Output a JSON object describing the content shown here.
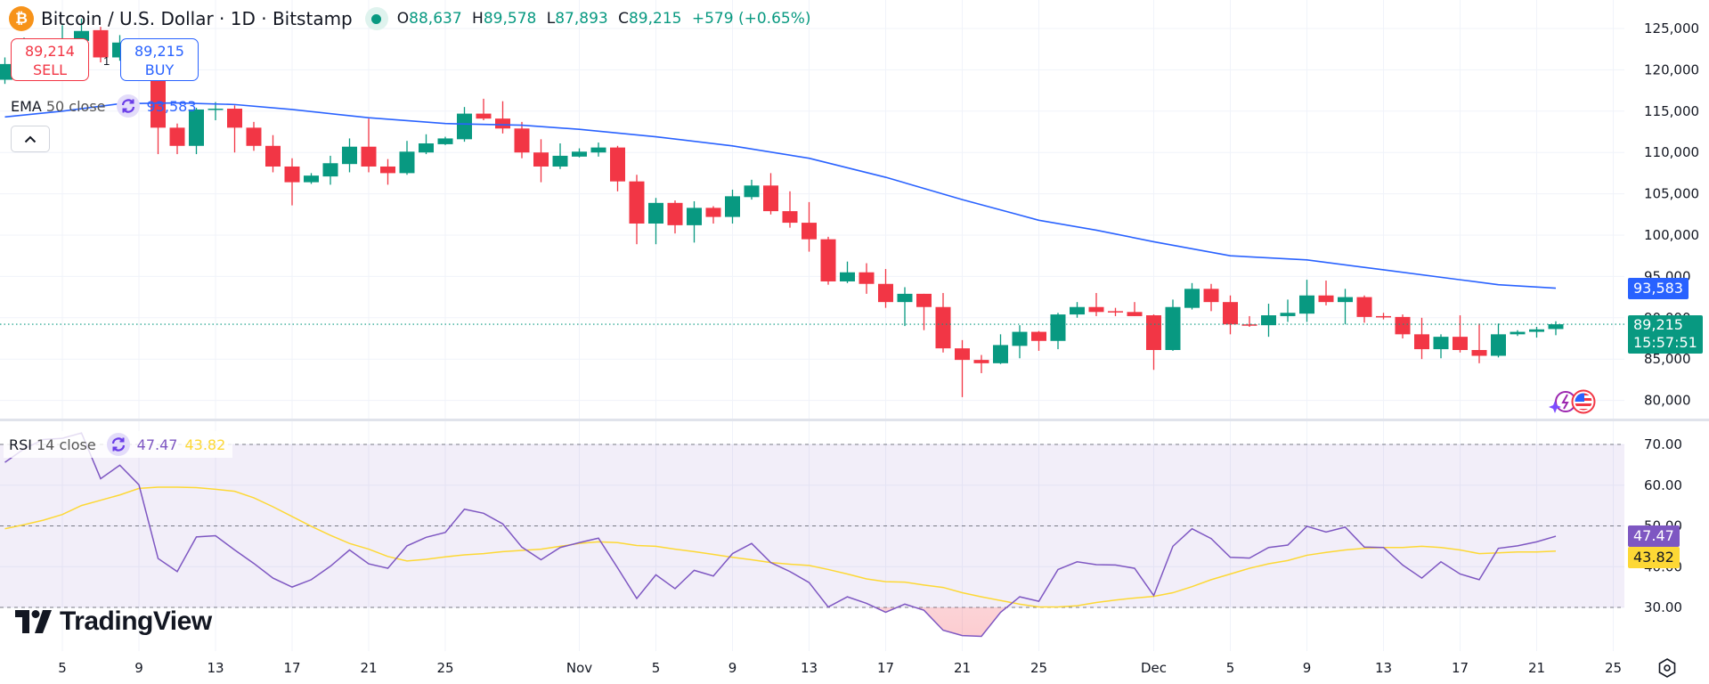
{
  "header": {
    "symbol_icon": "bitcoin-icon",
    "title": "Bitcoin / U.S. Dollar · 1D · Bitstamp",
    "market_status_icon": "market-open-dot-icon",
    "ohlc": {
      "o_label": "O",
      "o": "88,637",
      "h_label": "H",
      "h": "89,578",
      "l_label": "L",
      "l": "87,893",
      "c_label": "C",
      "c": "89,215",
      "change": "+579 (+0.65%)"
    }
  },
  "trade": {
    "sell_price": "89,214",
    "sell_label": "SELL",
    "buy_price": "89,215",
    "buy_label": "BUY",
    "quantity": "1"
  },
  "indicators": {
    "ema": {
      "name": "EMA",
      "params": "50 close",
      "value": "93,583",
      "color": "#2962ff"
    },
    "rsi": {
      "name": "RSI",
      "params": "14 close",
      "value": "47.47",
      "ma_value": "43.82",
      "color": "#7e57c2",
      "ma_color": "#fdd835"
    }
  },
  "price_badges": {
    "ema": "93,583",
    "last": "89,215",
    "countdown": "15:57:51"
  },
  "rsi_badges": {
    "rsi": "47.47",
    "ma": "43.82"
  },
  "logo": "TradingView",
  "colors": {
    "up": "#089981",
    "down": "#f23645",
    "ema": "#2962ff",
    "rsi": "#7e57c2",
    "rsi_ma": "#fdd835",
    "grid": "#f0f3fa"
  },
  "chart_data": {
    "type": "candlestick",
    "price_axis": {
      "ticks": [
        "125,000",
        "120,000",
        "115,000",
        "110,000",
        "105,000",
        "100,000",
        "95,000",
        "90,000",
        "85,000",
        "80,000"
      ],
      "range": [
        78000,
        127000
      ]
    },
    "rsi_axis": {
      "ticks": [
        "70.00",
        "60.00",
        "50.00",
        "40.00",
        "30.00"
      ],
      "range": [
        20,
        75
      ],
      "bands": [
        70,
        50,
        30
      ]
    },
    "x_axis": {
      "ticks": [
        [
          "Oct 5",
          "5"
        ],
        [
          "Oct 9",
          "9"
        ],
        [
          "Oct 13",
          "13"
        ],
        [
          "Oct 17",
          "17"
        ],
        [
          "Oct 21",
          "21"
        ],
        [
          "Oct 25",
          "25"
        ],
        [
          "Nov 1",
          "Nov"
        ],
        [
          "Nov 5",
          "5"
        ],
        [
          "Nov 9",
          "9"
        ],
        [
          "Nov 13",
          "13"
        ],
        [
          "Nov 17",
          "17"
        ],
        [
          "Nov 21",
          "21"
        ],
        [
          "Nov 25",
          "25"
        ],
        [
          "Dec 1",
          "Dec"
        ],
        [
          "Dec 5",
          "5"
        ],
        [
          "Dec 9",
          "9"
        ],
        [
          "Dec 13",
          "13"
        ],
        [
          "Dec 17",
          "17"
        ],
        [
          "Dec 21",
          "21"
        ],
        [
          "Dec 25",
          "25"
        ]
      ]
    },
    "last_price": 89215,
    "candles_columns": [
      "date",
      "open",
      "high",
      "low",
      "close"
    ],
    "candles": [
      [
        "Oct 2",
        118800,
        121500,
        118300,
        120700
      ],
      [
        "Oct 3",
        120700,
        123900,
        119500,
        122300
      ],
      [
        "Oct 4",
        122300,
        122900,
        121500,
        122400
      ],
      [
        "Oct 5",
        122400,
        125400,
        122000,
        123500
      ],
      [
        "Oct 6",
        123500,
        126200,
        123000,
        124700
      ],
      [
        "Oct 7",
        124800,
        125200,
        120900,
        121500
      ],
      [
        "Oct 8",
        121500,
        124200,
        121100,
        123300
      ],
      [
        "Oct 9",
        123300,
        123800,
        119800,
        121700
      ],
      [
        "Oct 10",
        121700,
        122500,
        109800,
        113000
      ],
      [
        "Oct 11",
        113000,
        113500,
        109800,
        110800
      ],
      [
        "Oct 12",
        110800,
        115400,
        109800,
        115200
      ],
      [
        "Oct 13",
        115200,
        116100,
        113900,
        115300
      ],
      [
        "Oct 14",
        115300,
        115700,
        110000,
        113000
      ],
      [
        "Oct 15",
        113000,
        113700,
        110200,
        110800
      ],
      [
        "Oct 16",
        110800,
        112100,
        107600,
        108300
      ],
      [
        "Oct 17",
        108300,
        109300,
        103600,
        106400
      ],
      [
        "Oct 18",
        106400,
        107500,
        106200,
        107200
      ],
      [
        "Oct 19",
        107100,
        109600,
        106100,
        108700
      ],
      [
        "Oct 20",
        108600,
        111700,
        107600,
        110700
      ],
      [
        "Oct 21",
        110700,
        114100,
        107600,
        108300
      ],
      [
        "Oct 22",
        108300,
        109200,
        106100,
        107500
      ],
      [
        "Oct 23",
        107500,
        111400,
        107300,
        110100
      ],
      [
        "Oct 24",
        110000,
        112200,
        109800,
        111100
      ],
      [
        "Oct 25",
        111000,
        111900,
        110900,
        111700
      ],
      [
        "Oct 26",
        111600,
        115500,
        111300,
        114700
      ],
      [
        "Oct 27",
        114700,
        116500,
        113900,
        114100
      ],
      [
        "Oct 28",
        114100,
        116200,
        112300,
        112900
      ],
      [
        "Oct 29",
        112900,
        113700,
        109300,
        110000
      ],
      [
        "Oct 30",
        110000,
        111600,
        106400,
        108300
      ],
      [
        "Oct 31",
        108300,
        111100,
        108000,
        109600
      ],
      [
        "Nov 1",
        109500,
        110500,
        109400,
        110100
      ],
      [
        "Nov 2",
        110000,
        111200,
        109500,
        110600
      ],
      [
        "Nov 3",
        110600,
        110800,
        105300,
        106500
      ],
      [
        "Nov 4",
        106500,
        107300,
        98900,
        101400
      ],
      [
        "Nov 5",
        101400,
        104500,
        98900,
        103900
      ],
      [
        "Nov 6",
        103900,
        104200,
        100200,
        101200
      ],
      [
        "Nov 7",
        101200,
        104100,
        99100,
        103300
      ],
      [
        "Nov 8",
        103300,
        103500,
        101400,
        102200
      ],
      [
        "Nov 9",
        102200,
        105500,
        101400,
        104700
      ],
      [
        "Nov 10",
        104600,
        106700,
        104300,
        106000
      ],
      [
        "Nov 11",
        106000,
        107500,
        102500,
        102900
      ],
      [
        "Nov 12",
        102900,
        105300,
        100900,
        101500
      ],
      [
        "Nov 13",
        101500,
        104000,
        98000,
        99500
      ],
      [
        "Nov 14",
        99500,
        99800,
        94000,
        94400
      ],
      [
        "Nov 15",
        94400,
        96800,
        94200,
        95500
      ],
      [
        "Nov 16",
        95500,
        96600,
        92900,
        94100
      ],
      [
        "Nov 17",
        94100,
        95900,
        91200,
        91900
      ],
      [
        "Nov 18",
        91900,
        93700,
        89000,
        92900
      ],
      [
        "Nov 19",
        92900,
        92900,
        88500,
        91300
      ],
      [
        "Nov 20",
        91300,
        93000,
        85800,
        86300
      ],
      [
        "Nov 21",
        86300,
        87300,
        80400,
        84900
      ],
      [
        "Nov 22",
        84900,
        85500,
        83300,
        84500
      ],
      [
        "Nov 23",
        84500,
        88000,
        84400,
        86700
      ],
      [
        "Nov 24",
        86600,
        89100,
        85100,
        88300
      ],
      [
        "Nov 25",
        88300,
        88400,
        86000,
        87200
      ],
      [
        "Nov 26",
        87200,
        90600,
        86200,
        90400
      ],
      [
        "Nov 27",
        90400,
        91900,
        90000,
        91300
      ],
      [
        "Nov 28",
        91300,
        93000,
        90200,
        90700
      ],
      [
        "Nov 29",
        90800,
        91200,
        90200,
        90700
      ],
      [
        "Nov 30",
        90700,
        91900,
        90200,
        90200
      ],
      [
        "Dec 1",
        90300,
        90400,
        83700,
        86100
      ],
      [
        "Dec 2",
        86100,
        92200,
        86000,
        91300
      ],
      [
        "Dec 3",
        91200,
        94200,
        91000,
        93500
      ],
      [
        "Dec 4",
        93500,
        94100,
        90800,
        91900
      ],
      [
        "Dec 5",
        91900,
        92700,
        88000,
        89200
      ],
      [
        "Dec 6",
        89200,
        90200,
        88900,
        89100
      ],
      [
        "Dec 7",
        89100,
        91700,
        87700,
        90300
      ],
      [
        "Dec 8",
        90200,
        92200,
        89500,
        90600
      ],
      [
        "Dec 9",
        90500,
        94600,
        89500,
        92700
      ],
      [
        "Dec 10",
        92700,
        94500,
        91500,
        91900
      ],
      [
        "Dec 11",
        91900,
        93500,
        89200,
        92500
      ],
      [
        "Dec 12",
        92500,
        92700,
        89400,
        90100
      ],
      [
        "Dec 13",
        90200,
        90600,
        89800,
        90100
      ],
      [
        "Dec 14",
        90100,
        90400,
        87500,
        88000
      ],
      [
        "Dec 15",
        88000,
        90000,
        85000,
        86200
      ],
      [
        "Dec 16",
        86200,
        88000,
        85100,
        87700
      ],
      [
        "Dec 17",
        87700,
        90300,
        85800,
        86100
      ],
      [
        "Dec 18",
        86100,
        89300,
        84500,
        85400
      ],
      [
        "Dec 19",
        85400,
        89300,
        85200,
        88000
      ],
      [
        "Dec 20",
        88000,
        88500,
        87800,
        88300
      ],
      [
        "Dec 21",
        88300,
        88900,
        87600,
        88600
      ],
      [
        "Dec 22",
        88637,
        89578,
        87893,
        89215
      ]
    ],
    "ema50": [
      [
        "Oct 2",
        114300
      ],
      [
        "Oct 5",
        115000
      ],
      [
        "Oct 8",
        115900
      ],
      [
        "Oct 11",
        116000
      ],
      [
        "Oct 14",
        115800
      ],
      [
        "Oct 17",
        115200
      ],
      [
        "Oct 21",
        114200
      ],
      [
        "Oct 25",
        113500
      ],
      [
        "Oct 29",
        113300
      ],
      [
        "Nov 1",
        112800
      ],
      [
        "Nov 5",
        111900
      ],
      [
        "Nov 9",
        110800
      ],
      [
        "Nov 13",
        109300
      ],
      [
        "Nov 17",
        107000
      ],
      [
        "Nov 21",
        104300
      ],
      [
        "Nov 25",
        101800
      ],
      [
        "Nov 28",
        100600
      ],
      [
        "Dec 1",
        99200
      ],
      [
        "Dec 5",
        97500
      ],
      [
        "Dec 9",
        97000
      ],
      [
        "Dec 13",
        95800
      ],
      [
        "Dec 17",
        94600
      ],
      [
        "Dec 19",
        94000
      ],
      [
        "Dec 22",
        93583
      ]
    ],
    "rsi14": [
      65.6,
      68.9,
      71.2,
      71.5,
      72.8,
      61.6,
      64.9,
      60.1,
      42.0,
      38.8,
      47.3,
      47.6,
      44.1,
      40.8,
      37.2,
      35.0,
      36.8,
      40.1,
      44.1,
      40.7,
      39.6,
      45.1,
      47.2,
      48.4,
      54.1,
      53.1,
      50.5,
      44.8,
      41.7,
      44.7,
      45.9,
      47.0,
      39.7,
      32.2,
      38.0,
      34.6,
      39.1,
      37.7,
      43.2,
      45.7,
      41.0,
      38.8,
      36.1,
      30.1,
      32.6,
      31.0,
      28.8,
      30.8,
      29.3,
      24.4,
      23.1,
      22.9,
      28.8,
      32.6,
      31.5,
      39.3,
      41.2,
      40.5,
      40.4,
      39.6,
      32.9,
      45.0,
      49.3,
      46.9,
      42.3,
      42.1,
      44.7,
      45.3,
      49.9,
      48.5,
      49.7,
      44.8,
      44.7,
      40.4,
      37.2,
      41.2,
      38.2,
      36.8,
      44.5,
      45.1,
      46.1,
      47.47
    ],
    "rsi_ma": [
      49.3,
      50.3,
      51.4,
      52.8,
      55.0,
      56.3,
      57.6,
      59.2,
      59.5,
      59.5,
      59.4,
      59.0,
      58.5,
      56.9,
      54.7,
      52.3,
      49.9,
      47.7,
      45.7,
      44.3,
      42.5,
      41.4,
      41.8,
      42.4,
      42.9,
      43.2,
      43.7,
      44.0,
      44.3,
      45.0,
      45.7,
      46.1,
      45.9,
      45.2,
      45.0,
      44.3,
      43.7,
      43.0,
      42.3,
      41.7,
      41.0,
      40.6,
      40.3,
      39.3,
      38.2,
      37.0,
      36.3,
      36.2,
      35.5,
      34.9,
      33.6,
      32.6,
      31.7,
      30.8,
      30.1,
      30.1,
      30.4,
      31.2,
      31.8,
      32.3,
      32.7,
      33.6,
      35.1,
      36.8,
      38.2,
      39.6,
      40.7,
      41.5,
      42.8,
      43.5,
      44.1,
      44.5,
      44.7,
      44.7,
      45.0,
      44.7,
      44.1,
      43.2,
      43.4,
      43.6,
      43.6,
      43.82
    ],
    "rsi_start_date": "Oct 2"
  }
}
